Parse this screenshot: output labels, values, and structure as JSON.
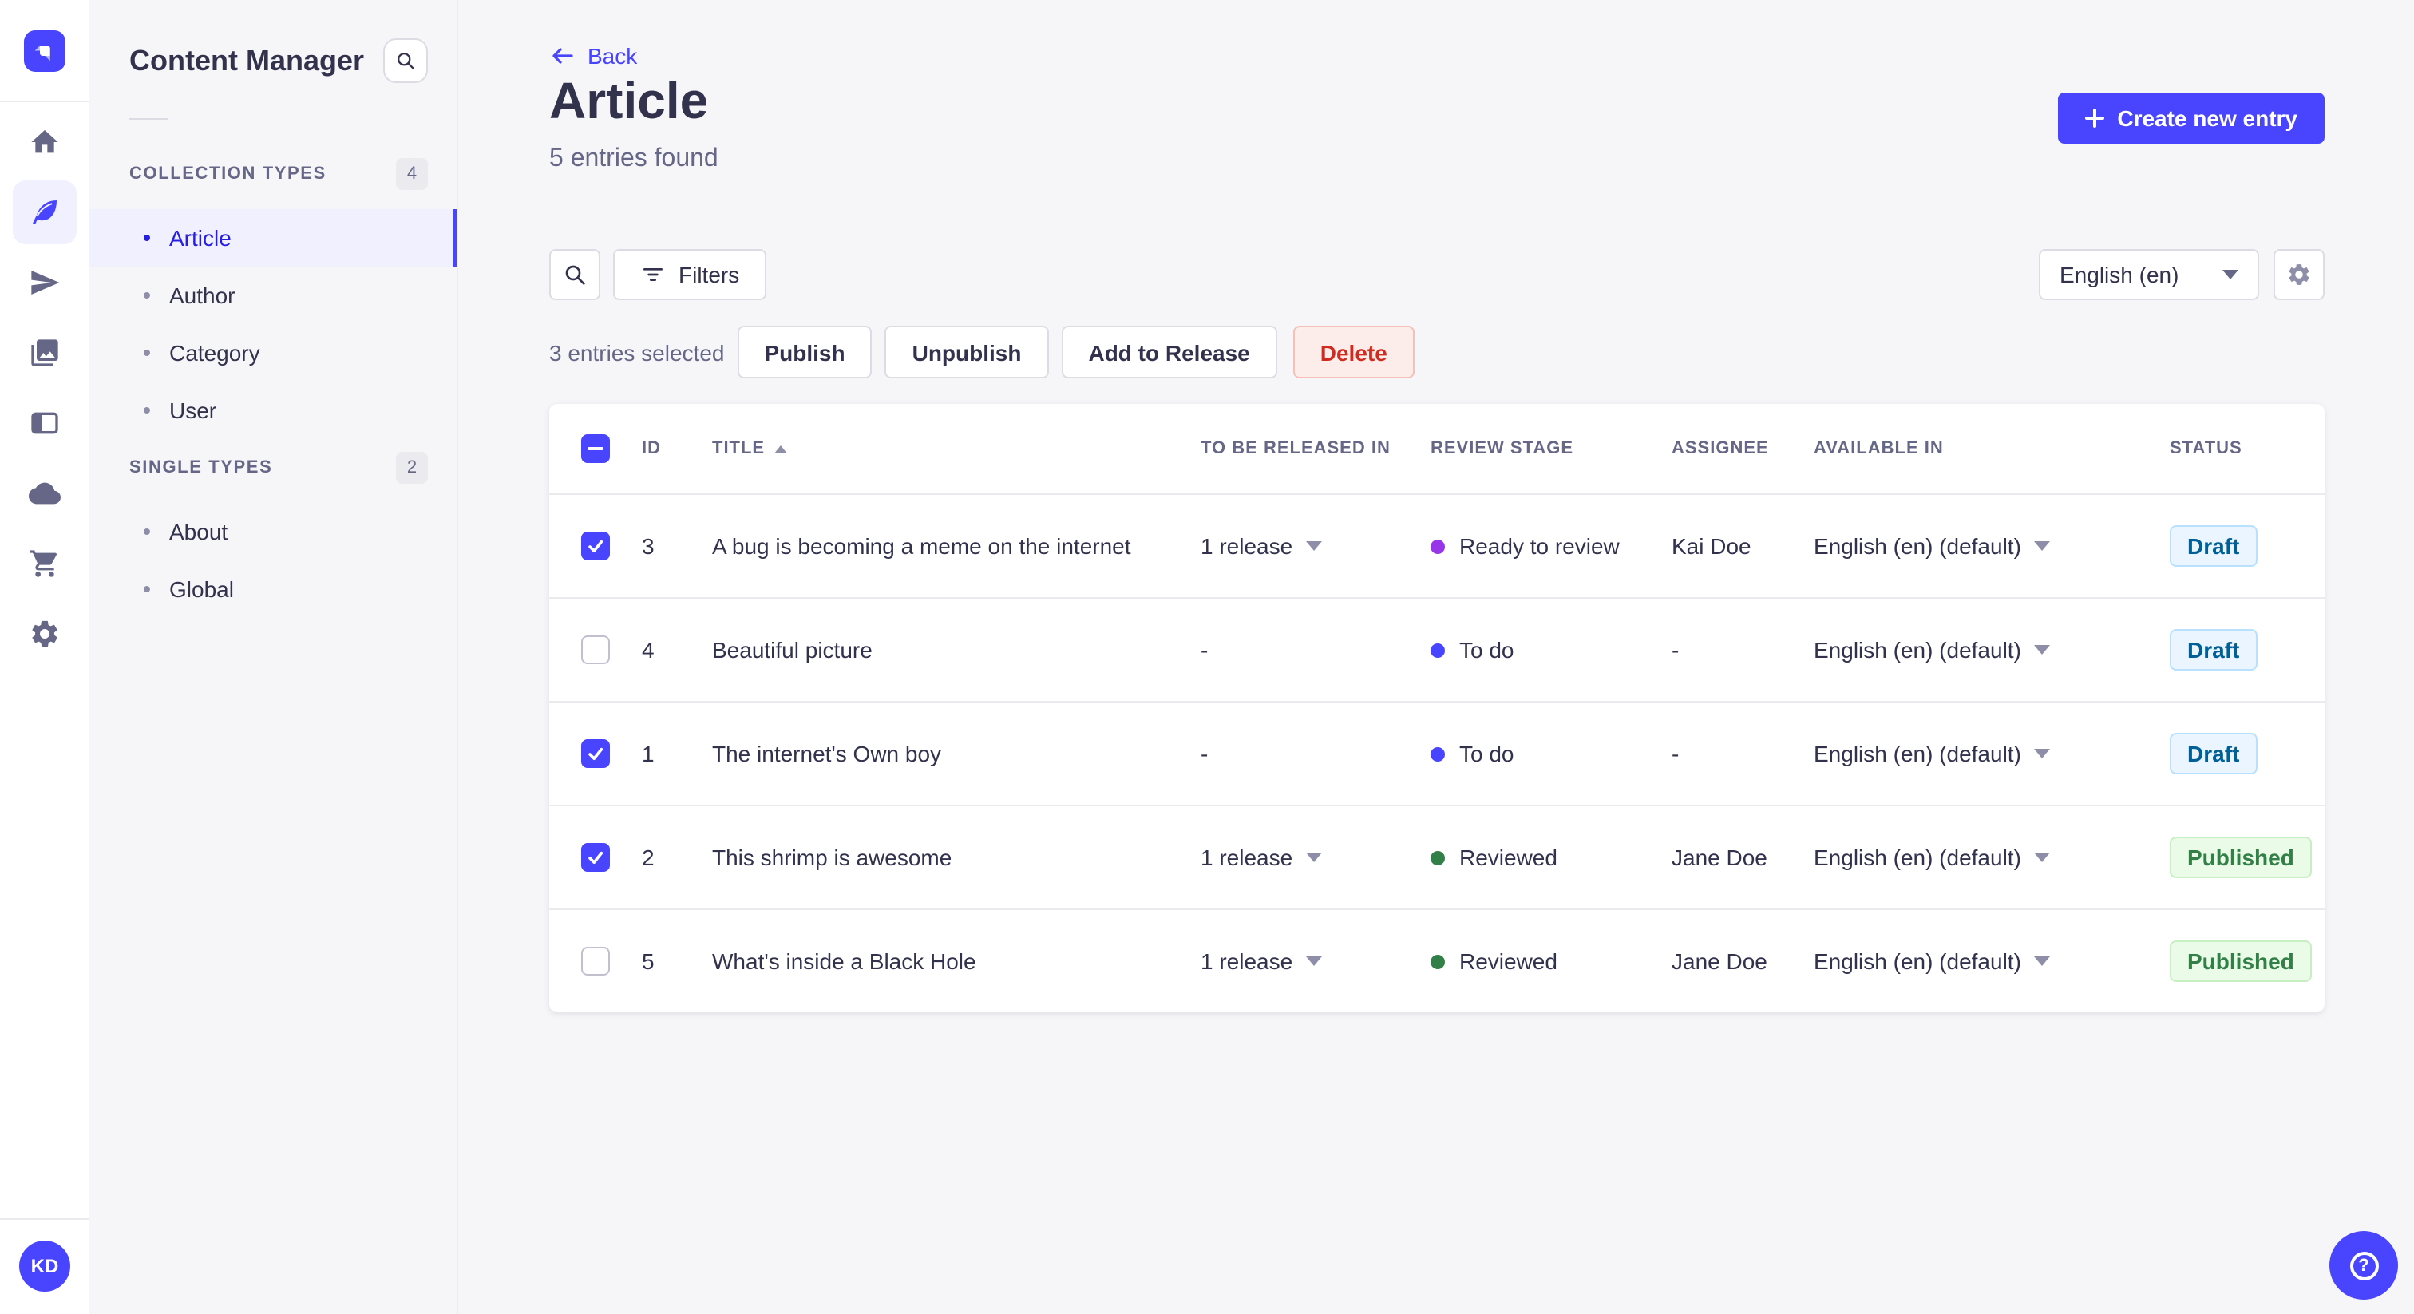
{
  "colors": {
    "primary": "#4945ff",
    "primary_active_text": "#271fe0",
    "draft_text": "#006096",
    "published_text": "#328048",
    "delete_text": "#d02b20"
  },
  "nav_rail": {
    "icons": [
      "home",
      "content-manager",
      "releases",
      "media-library",
      "content-type-builder",
      "cloud",
      "marketplace",
      "settings"
    ],
    "active_icon": "content-manager",
    "avatar_initials": "KD"
  },
  "sidebar": {
    "title": "Content Manager",
    "sections": [
      {
        "label": "COLLECTION TYPES",
        "count": "4",
        "items": [
          {
            "label": "Article",
            "active": true
          },
          {
            "label": "Author",
            "active": false
          },
          {
            "label": "Category",
            "active": false
          },
          {
            "label": "User",
            "active": false
          }
        ]
      },
      {
        "label": "SINGLE TYPES",
        "count": "2",
        "items": [
          {
            "label": "About",
            "active": false
          },
          {
            "label": "Global",
            "active": false
          }
        ]
      }
    ]
  },
  "header": {
    "back_label": "Back",
    "title": "Article",
    "subtitle": "5 entries found",
    "create_button": "Create new entry"
  },
  "toolbar": {
    "filters_label": "Filters",
    "locale_value": "English (en)"
  },
  "selection": {
    "text": "3 entries selected",
    "publish_label": "Publish",
    "unpublish_label": "Unpublish",
    "add_to_release_label": "Add to Release",
    "delete_label": "Delete"
  },
  "table": {
    "headers": [
      "ID",
      "TITLE",
      "TO BE RELEASED IN",
      "REVIEW STAGE",
      "ASSIGNEE",
      "AVAILABLE IN",
      "STATUS"
    ],
    "rows": [
      {
        "checked": true,
        "id": "3",
        "title": "A bug is becoming a meme on the internet",
        "release": "1 release",
        "release_menu": true,
        "review": "Ready to review",
        "review_color": "#9736e8",
        "assignee": "Kai Doe",
        "available": "English (en) (default)",
        "status": "Draft",
        "status_kind": "draft"
      },
      {
        "checked": false,
        "id": "4",
        "title": "Beautiful picture",
        "release": "-",
        "release_menu": false,
        "review": "To do",
        "review_color": "#4945ff",
        "assignee": "-",
        "available": "English (en) (default)",
        "status": "Draft",
        "status_kind": "draft"
      },
      {
        "checked": true,
        "id": "1",
        "title": "The internet's Own boy",
        "release": "-",
        "release_menu": false,
        "review": "To do",
        "review_color": "#4945ff",
        "assignee": "-",
        "available": "English (en) (default)",
        "status": "Draft",
        "status_kind": "draft"
      },
      {
        "checked": true,
        "id": "2",
        "title": "This shrimp is awesome",
        "release": "1 release",
        "release_menu": true,
        "review": "Reviewed",
        "review_color": "#328048",
        "assignee": "Jane Doe",
        "available": "English (en) (default)",
        "status": "Published",
        "status_kind": "published"
      },
      {
        "checked": false,
        "id": "5",
        "title": "What's inside a Black Hole",
        "release": "1 release",
        "release_menu": true,
        "review": "Reviewed",
        "review_color": "#328048",
        "assignee": "Jane Doe",
        "available": "English (en) (default)",
        "status": "Published",
        "status_kind": "published"
      }
    ]
  }
}
